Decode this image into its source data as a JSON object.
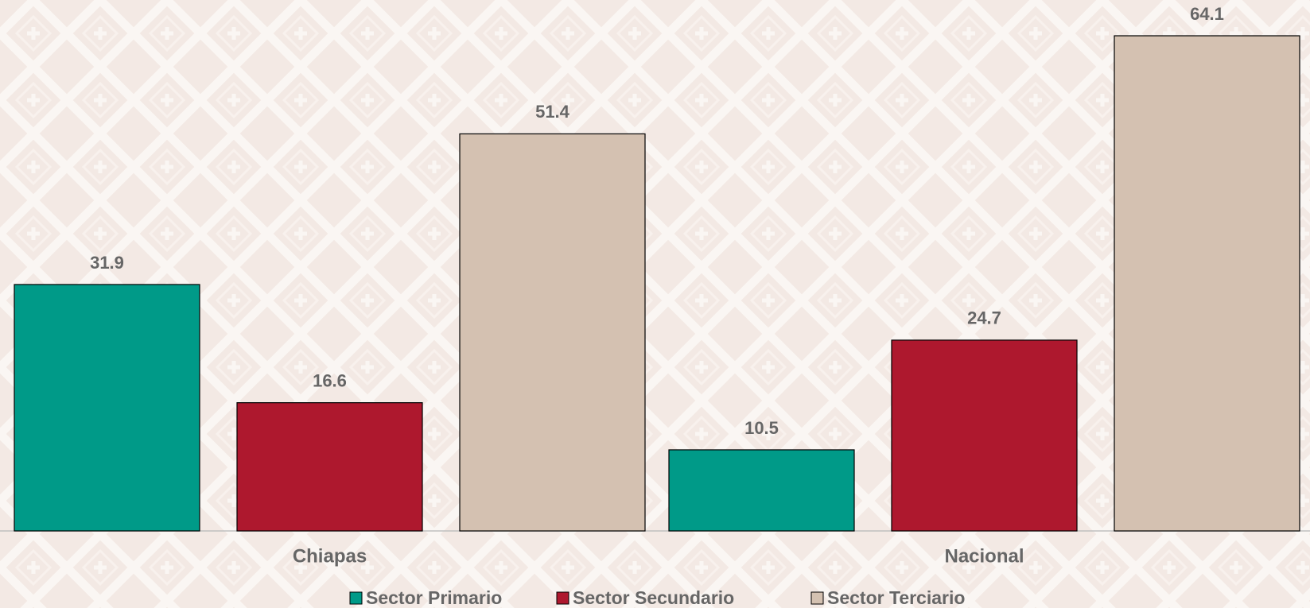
{
  "chart_data": {
    "type": "bar",
    "categories": [
      "Chiapas",
      "Nacional"
    ],
    "series": [
      {
        "name": "Sector Primario",
        "color": "#009a88",
        "values": [
          31.9,
          10.5
        ]
      },
      {
        "name": "Sector Secundario",
        "color": "#ae182e",
        "values": [
          16.6,
          24.7
        ]
      },
      {
        "name": "Sector Terciario",
        "color": "#d4c1b1",
        "values": [
          51.4,
          64.1
        ]
      }
    ],
    "legend": "bottom"
  }
}
